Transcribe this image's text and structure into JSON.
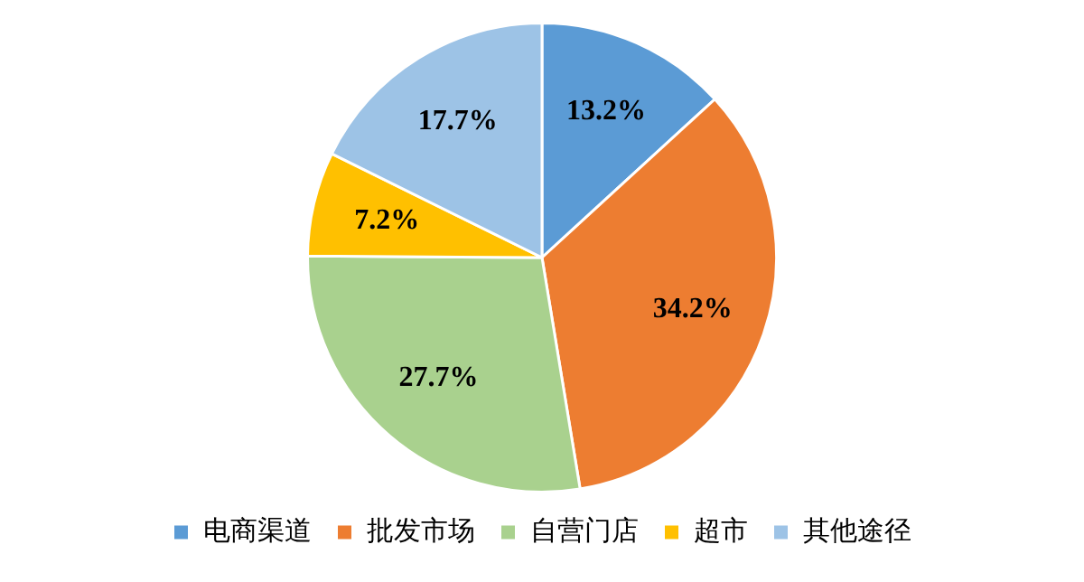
{
  "chart_data": {
    "type": "pie",
    "categories": [
      "电商渠道",
      "批发市场",
      "自营门店",
      "超市",
      "其他途径"
    ],
    "values": [
      13.2,
      34.2,
      27.7,
      7.2,
      17.7
    ],
    "colors": [
      "#5b9bd5",
      "#ed7d31",
      "#a9d18e",
      "#ffc000",
      "#9dc3e6"
    ],
    "value_labels": [
      "13.2%",
      "34.2%",
      "27.7%",
      "7.2%",
      "17.7%"
    ],
    "legend": "bottom"
  }
}
